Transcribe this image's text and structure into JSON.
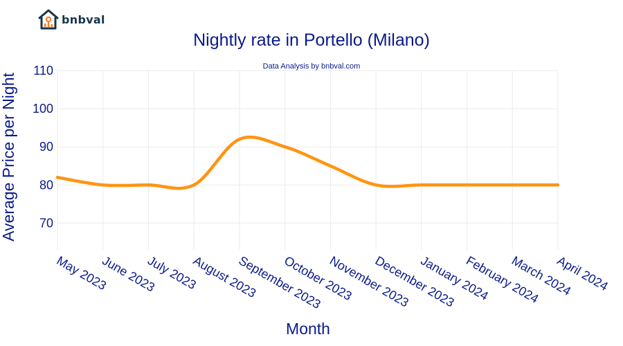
{
  "brand": {
    "name": "bnbval"
  },
  "chart_data": {
    "type": "line",
    "title": "Nightly rate in Portello (Milano)",
    "subtitle": "Data Analysis by bnbval.com",
    "xlabel": "Month",
    "ylabel": "Average Price per Night",
    "categories": [
      "May 2023",
      "June 2023",
      "July 2023",
      "August 2023",
      "September 2023",
      "October 2023",
      "November 2023",
      "December 2023",
      "January 2024",
      "February 2024",
      "March 2024",
      "April 2024"
    ],
    "series": [
      {
        "values": [
          82,
          80,
          80,
          80,
          92,
          90,
          85,
          80,
          80,
          80,
          80,
          80
        ]
      }
    ],
    "yticks": [
      70,
      80,
      90,
      100,
      110
    ],
    "ylim": [
      63,
      110
    ],
    "grid": true,
    "line_color": "#ff9411",
    "text_color": "#0a1a8a"
  }
}
